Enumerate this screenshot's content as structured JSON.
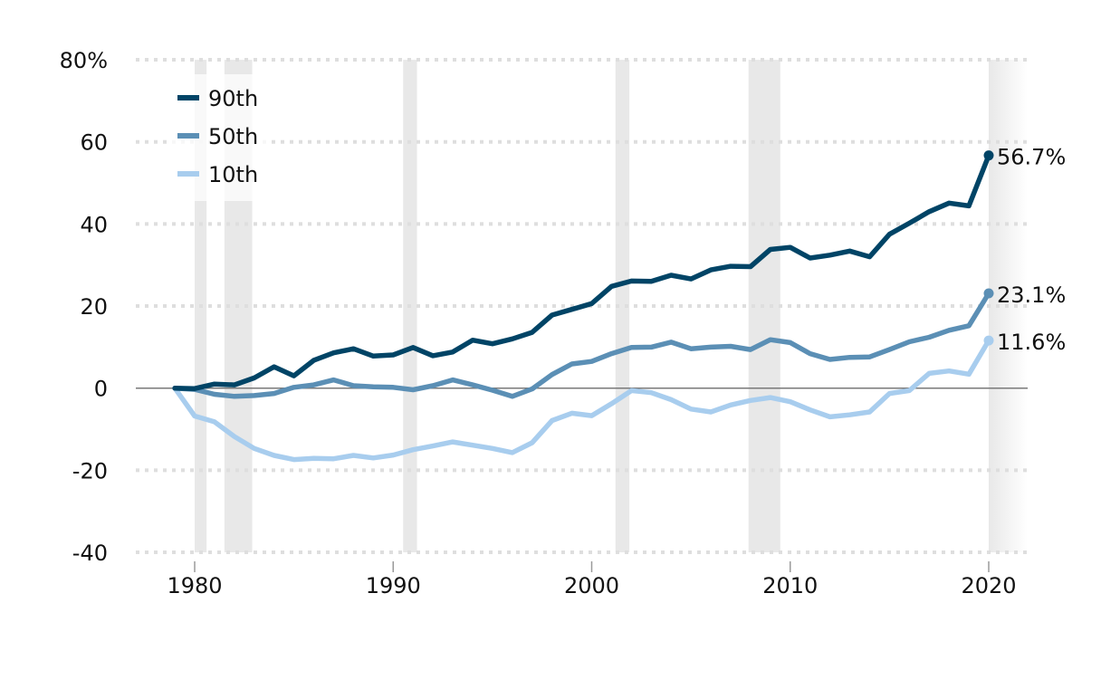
{
  "chart_data": {
    "type": "line",
    "title": "",
    "xlabel": "",
    "ylabel": "",
    "xlim": [
      1977,
      2022
    ],
    "ylim": [
      -40,
      80
    ],
    "grid": true,
    "y_ticks": [
      {
        "value": 80,
        "label": "80%"
      },
      {
        "value": 60,
        "label": "60"
      },
      {
        "value": 40,
        "label": "40"
      },
      {
        "value": 20,
        "label": "20"
      },
      {
        "value": 0,
        "label": "0"
      },
      {
        "value": -20,
        "label": "-20"
      },
      {
        "value": -40,
        "label": "-40"
      }
    ],
    "x_ticks": [
      {
        "value": 1980,
        "label": "1980"
      },
      {
        "value": 1990,
        "label": "1990"
      },
      {
        "value": 2000,
        "label": "2000"
      },
      {
        "value": 2010,
        "label": "2010"
      },
      {
        "value": 2020,
        "label": "2020"
      }
    ],
    "legend_position": "top-left",
    "recessions": [
      {
        "start": 1980.0,
        "end": 1980.6
      },
      {
        "start": 1981.5,
        "end": 1982.9
      },
      {
        "start": 1990.5,
        "end": 1991.2
      },
      {
        "start": 2001.2,
        "end": 2001.9
      },
      {
        "start": 2007.9,
        "end": 2009.5
      },
      {
        "start": 2020.0,
        "end": 2022.0,
        "fade": true
      }
    ],
    "x": [
      1979,
      1980,
      1981,
      1982,
      1983,
      1984,
      1985,
      1986,
      1987,
      1988,
      1989,
      1990,
      1991,
      1992,
      1993,
      1994,
      1995,
      1996,
      1997,
      1998,
      1999,
      2000,
      2001,
      2002,
      2003,
      2004,
      2005,
      2006,
      2007,
      2008,
      2009,
      2010,
      2011,
      2012,
      2013,
      2014,
      2015,
      2016,
      2017,
      2018,
      2019,
      2020
    ],
    "series": [
      {
        "name": "90th",
        "color": "#004466",
        "end_label": "56.7%",
        "values": [
          0,
          -0.1,
          1.0,
          0.8,
          2.5,
          5.2,
          3.0,
          6.8,
          8.6,
          9.6,
          7.8,
          8.1,
          9.9,
          7.9,
          8.8,
          11.7,
          10.8,
          12.0,
          13.6,
          17.8,
          19.2,
          20.6,
          24.8,
          26.1,
          26.0,
          27.5,
          26.6,
          28.8,
          29.7,
          29.6,
          33.8,
          34.3,
          31.7,
          32.4,
          33.4,
          32.0,
          37.5,
          40.2,
          43.0,
          45.1,
          44.4,
          56.7
        ]
      },
      {
        "name": "50th",
        "color": "#5b8fb5",
        "end_label": "23.1%",
        "values": [
          0,
          -0.3,
          -1.5,
          -2.0,
          -1.8,
          -1.3,
          0.2,
          0.8,
          2.0,
          0.6,
          0.3,
          0.2,
          -0.4,
          0.6,
          2.0,
          0.8,
          -0.5,
          -2.0,
          -0.2,
          3.3,
          5.9,
          6.5,
          8.4,
          9.9,
          10.0,
          11.2,
          9.6,
          10.0,
          10.2,
          9.4,
          11.8,
          11.1,
          8.4,
          7.0,
          7.5,
          7.6,
          9.4,
          11.3,
          12.4,
          14.1,
          15.2,
          23.1
        ]
      },
      {
        "name": "10th",
        "color": "#a8cdee",
        "end_label": "11.6%",
        "values": [
          0,
          -6.8,
          -8.2,
          -11.8,
          -14.7,
          -16.4,
          -17.4,
          -17.1,
          -17.2,
          -16.4,
          -17.0,
          -16.3,
          -15.0,
          -14.1,
          -13.1,
          -13.9,
          -14.7,
          -15.7,
          -13.3,
          -7.9,
          -6.1,
          -6.7,
          -3.8,
          -0.6,
          -1.1,
          -2.8,
          -5.1,
          -5.8,
          -4.1,
          -3.0,
          -2.3,
          -3.3,
          -5.3,
          -7.0,
          -6.5,
          -5.8,
          -1.3,
          -0.6,
          3.6,
          4.2,
          3.4,
          11.6
        ]
      }
    ]
  }
}
